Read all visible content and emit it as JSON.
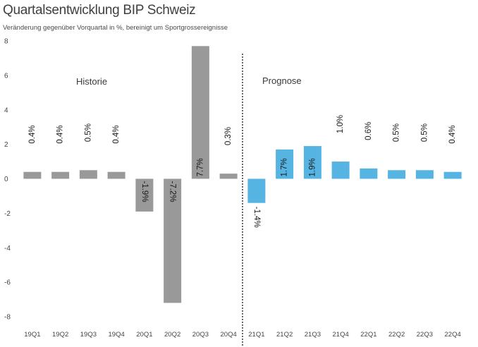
{
  "title": "Quartalsentwicklung BIP Schweiz",
  "subtitle": "Veränderung gegenüber Vorquartal in %, bereinigt um Sportgrossereignisse",
  "chart_data": {
    "type": "bar",
    "title": "Quartalsentwicklung BIP Schweiz",
    "subtitle": "Veränderung gegenüber Vorquartal in %, bereinigt um Sportgrossereignisse",
    "xlabel": "",
    "ylabel": "",
    "ylim": [
      -8,
      8
    ],
    "yticks": [
      8,
      6,
      4,
      2,
      0,
      -2,
      -4,
      -6,
      -8
    ],
    "ytick_labels": [
      "8",
      "6",
      "4",
      "2",
      "0",
      "-2",
      "-4",
      "-6",
      "-8"
    ],
    "grid": false,
    "categories": [
      "19Q1",
      "19Q2",
      "19Q3",
      "19Q4",
      "20Q1",
      "20Q2",
      "20Q3",
      "20Q4",
      "21Q1",
      "21Q2",
      "21Q3",
      "21Q4",
      "22Q1",
      "22Q2",
      "22Q3",
      "22Q4"
    ],
    "values": [
      0.4,
      0.4,
      0.5,
      0.4,
      -1.9,
      -7.2,
      7.7,
      0.3,
      -1.4,
      1.7,
      1.9,
      1.0,
      0.6,
      0.5,
      0.5,
      0.4
    ],
    "data_labels": [
      "0.4%",
      "0.4%",
      "0.5%",
      "0.4%",
      "-1.9%",
      "-7.2%",
      "7.7%",
      "0.3%",
      "-1.4%",
      "1.7%",
      "1.9%",
      "1.0%",
      "0.6%",
      "0.5%",
      "0.5%",
      "0.4%"
    ],
    "sections": [
      {
        "label": "Historie",
        "categories": [
          "19Q1",
          "19Q2",
          "19Q3",
          "19Q4",
          "20Q1",
          "20Q2",
          "20Q3",
          "20Q4"
        ],
        "color": "#999999"
      },
      {
        "label": "Prognose",
        "categories": [
          "21Q1",
          "21Q2",
          "21Q3",
          "21Q4",
          "22Q1",
          "22Q2",
          "22Q3",
          "22Q4"
        ],
        "color": "#56b4e3"
      }
    ],
    "divider": "dotted line between 20Q4 and 21Q1"
  }
}
